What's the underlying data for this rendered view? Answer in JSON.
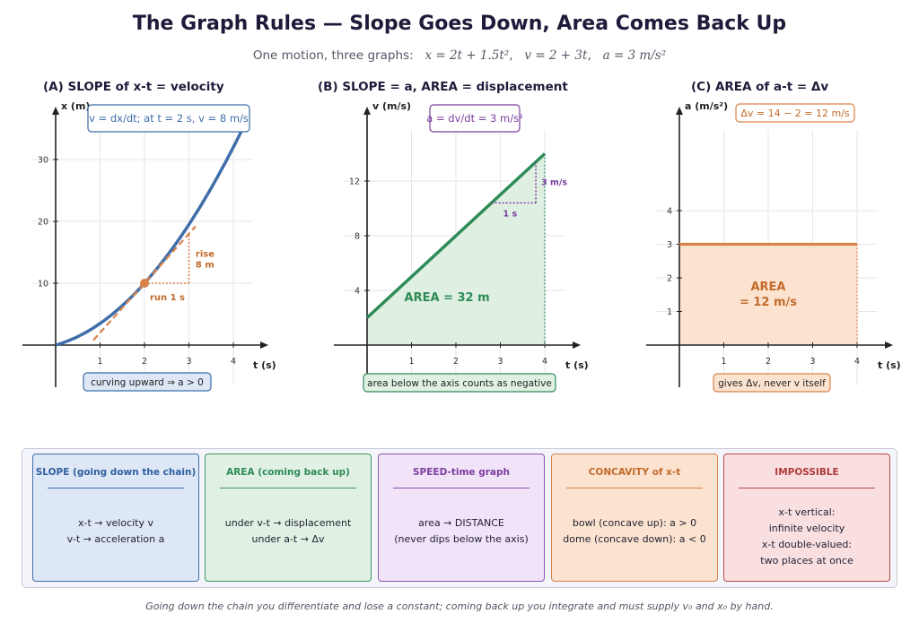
{
  "title": "The Graph Rules  —  Slope Goes Down, Area Comes Back Up",
  "subtitle": {
    "lead": "One motion, three graphs:",
    "eq_x": "x = 2t + 1.5t²",
    "eq_v": "v = 2 + 3t",
    "eq_a": "a = 3 m/s²"
  },
  "colors": {
    "navy": "#1e1b3a",
    "blue": "#3f6eaa",
    "orange": "#d9824a",
    "orange_text": "#c26a2a",
    "green": "#2e8b57",
    "purple": "#7b3f9e",
    "red": "#b03a3a"
  },
  "chart_data": [
    {
      "type": "line",
      "panel": "A",
      "title": "(A)   SLOPE of x-t   =   velocity",
      "xlabel": "t (s)",
      "ylabel": "x (m)",
      "xlim": [
        0,
        4.7
      ],
      "ylim": [
        0,
        38
      ],
      "x_ticks": [
        1,
        2,
        3,
        4
      ],
      "y_ticks": [
        10,
        20,
        30
      ],
      "series": [
        {
          "function": "x = 2t + 1.5t²",
          "t_range": [
            0,
            4.2
          ]
        }
      ],
      "tangent": {
        "at_t": 2,
        "x_at_t": 10,
        "slope": 8,
        "t_range": [
          0.85,
          3.15
        ]
      },
      "point": {
        "t": 2,
        "x": 10
      },
      "run_label": "run 1 s",
      "rise_label": [
        "rise",
        "8 m"
      ],
      "annotation": "v = dx/dt;  at t = 2 s,  v = 8 m/s",
      "caption": "curving upward  ⇒  a > 0",
      "grid": true
    },
    {
      "type": "line",
      "panel": "B",
      "title": "(B)   SLOPE = a,   AREA = displacement",
      "xlabel": "t (s)",
      "ylabel": "v (m/s)",
      "xlim": [
        0,
        4.7
      ],
      "ylim": [
        0,
        17
      ],
      "x_ticks": [
        1,
        2,
        3,
        4
      ],
      "y_ticks": [
        4,
        8,
        12
      ],
      "series": [
        {
          "function": "v = 2 + 3t",
          "t": [
            0,
            4
          ],
          "v": [
            2,
            14
          ]
        }
      ],
      "slope_triangle": {
        "t_start": 2.8,
        "t_end": 3.8,
        "dv": 3
      },
      "run_label": "1 s",
      "rise_label": "3 m/s",
      "area_label": "AREA  =  32 m",
      "annotation": "a = dv/dt = 3 m/s²",
      "caption": "area below the axis counts as negative",
      "grid": true
    },
    {
      "type": "line",
      "panel": "C",
      "title": "(C)    AREA of a-t   =   Δv",
      "xlabel": "t (s)",
      "ylabel": "a (m/s²)",
      "xlim": [
        0,
        4.7
      ],
      "ylim": [
        0,
        7
      ],
      "x_ticks": [
        1,
        2,
        3,
        4
      ],
      "y_ticks": [
        1,
        2,
        3,
        4
      ],
      "series": [
        {
          "function": "a = 3",
          "t": [
            0,
            4
          ],
          "a": [
            3,
            3
          ]
        }
      ],
      "area_label": [
        "AREA",
        "=  12 m/s"
      ],
      "annotation": "Δv = 14 − 2 = 12 m/s",
      "caption": "gives Δv, never v itself",
      "grid": true
    }
  ],
  "boxes": [
    {
      "title": "SLOPE  (going down the chain)",
      "lines": [
        "x-t  →  velocity v",
        "v-t  →  acceleration a"
      ],
      "border": "#3f6eaa",
      "fill": "#dde7f6",
      "title_color": "#2f5f9e"
    },
    {
      "title": "AREA  (coming back up)",
      "lines": [
        "under v-t  →  displacement",
        "under a-t  →  Δv"
      ],
      "border": "#3d9460",
      "fill": "#e0f1e3",
      "title_color": "#2e8b57"
    },
    {
      "title": "SPEED-time graph",
      "lines": [
        "area  →  DISTANCE",
        "(never dips below the axis)"
      ],
      "border": "#8a55b0",
      "fill": "#f1e3f8",
      "title_color": "#7b3f9e"
    },
    {
      "title": "CONCAVITY of x-t",
      "lines": [
        "bowl (concave up): a > 0",
        "dome (concave down): a < 0"
      ],
      "border": "#d9824a",
      "fill": "#fce3d0",
      "title_color": "#c26a2a"
    },
    {
      "title": "IMPOSSIBLE",
      "lines": [
        "x-t vertical:",
        "infinite velocity",
        "x-t double-valued:",
        "two places at once"
      ],
      "border": "#b84848",
      "fill": "#fadfe0",
      "title_color": "#b03a3a"
    }
  ],
  "footer": "Going down the chain you differentiate and lose a constant; coming back up you integrate and must supply v₀ and x₀ by hand."
}
